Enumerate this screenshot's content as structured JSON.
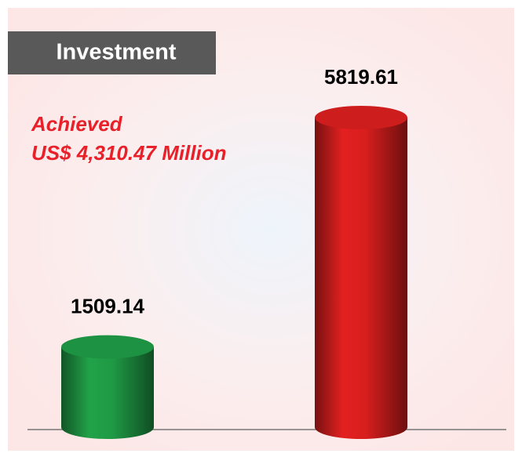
{
  "chart_data": {
    "type": "bar",
    "title": "Investment",
    "annotations": [
      "Achieved",
      "US$ 4,310.47 Million"
    ],
    "categories": [
      null,
      null
    ],
    "values": [
      1509.14,
      5819.61
    ],
    "colors": [
      "#1f9a45",
      "#d81e1e"
    ]
  }
}
